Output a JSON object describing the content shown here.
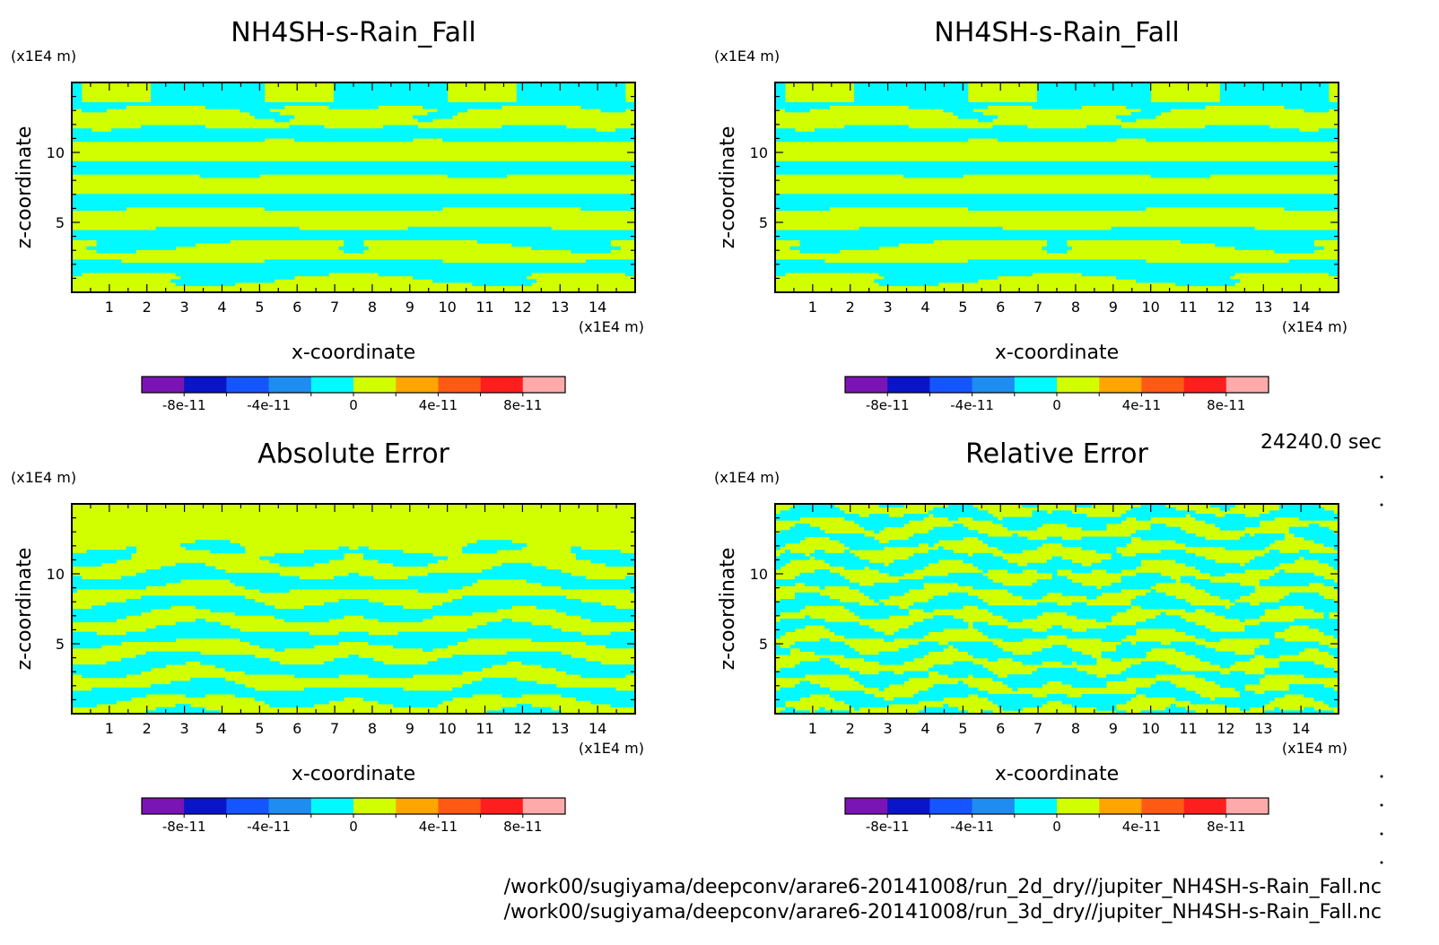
{
  "colors": {
    "bin_colors": [
      "#7b14b4",
      "#0a14c8",
      "#1455ff",
      "#1e8cf0",
      "#00faff",
      "#d2ff00",
      "#ffa500",
      "#ff5a14",
      "#ff1e1e",
      "#ffaaaa"
    ],
    "zero_pos": "#d2ff00",
    "zero_neg": "#00faff"
  },
  "chart_data": [
    {
      "type": "heatmap",
      "title": "NH4SH-s-Rain_Fall",
      "xlabel": "x-coordinate",
      "ylabel": "z-coordinate",
      "x_unit": "(x1E4 m)",
      "y_unit": "(x1E4 m)",
      "xlim": [
        0,
        15.0
      ],
      "ylim": [
        0,
        15.0
      ],
      "x_ticks": [
        "1",
        "2",
        "3",
        "4",
        "5",
        "6",
        "7",
        "8",
        "9",
        "10",
        "11",
        "12",
        "13",
        "14"
      ],
      "y_ticks": [
        "5",
        "10"
      ],
      "pattern": "field",
      "colorbar": {
        "min": -1e-10,
        "max": 1e-10,
        "step": 2e-11,
        "labels": [
          "-8e-11",
          "-4e-11",
          "0",
          "4e-11",
          "8e-11"
        ]
      }
    },
    {
      "type": "heatmap",
      "title": "NH4SH-s-Rain_Fall",
      "xlabel": "x-coordinate",
      "ylabel": "z-coordinate",
      "x_unit": "(x1E4 m)",
      "y_unit": "(x1E4 m)",
      "xlim": [
        0,
        15.0
      ],
      "ylim": [
        0,
        15.0
      ],
      "x_ticks": [
        "1",
        "2",
        "3",
        "4",
        "5",
        "6",
        "7",
        "8",
        "9",
        "10",
        "11",
        "12",
        "13",
        "14"
      ],
      "y_ticks": [
        "5",
        "10"
      ],
      "pattern": "field",
      "colorbar": {
        "min": -1e-10,
        "max": 1e-10,
        "step": 2e-11,
        "labels": [
          "-8e-11",
          "-4e-11",
          "0",
          "4e-11",
          "8e-11"
        ]
      }
    },
    {
      "type": "heatmap",
      "title": "Absolute Error",
      "xlabel": "x-coordinate",
      "ylabel": "z-coordinate",
      "x_unit": "(x1E4 m)",
      "y_unit": "(x1E4 m)",
      "xlim": [
        0,
        15.0
      ],
      "ylim": [
        0,
        15.0
      ],
      "x_ticks": [
        "1",
        "2",
        "3",
        "4",
        "5",
        "6",
        "7",
        "8",
        "9",
        "10",
        "11",
        "12",
        "13",
        "14"
      ],
      "y_ticks": [
        "5",
        "10"
      ],
      "pattern": "abserr",
      "colorbar": {
        "min": -1e-10,
        "max": 1e-10,
        "step": 2e-11,
        "labels": [
          "-8e-11",
          "-4e-11",
          "0",
          "4e-11",
          "8e-11"
        ]
      }
    },
    {
      "type": "heatmap",
      "title": "Relative Error",
      "xlabel": "x-coordinate",
      "ylabel": "z-coordinate",
      "x_unit": "(x1E4 m)",
      "y_unit": "(x1E4 m)",
      "xlim": [
        0,
        15.0
      ],
      "ylim": [
        0,
        15.0
      ],
      "x_ticks": [
        "1",
        "2",
        "3",
        "4",
        "5",
        "6",
        "7",
        "8",
        "9",
        "10",
        "11",
        "12",
        "13",
        "14"
      ],
      "y_ticks": [
        "5",
        "10"
      ],
      "pattern": "relerr",
      "colorbar": {
        "min": -1e-10,
        "max": 1e-10,
        "step": 2e-11,
        "labels": [
          "-8e-11",
          "-4e-11",
          "0",
          "4e-11",
          "8e-11"
        ]
      }
    }
  ],
  "time_label": "24240.0 sec",
  "footer": {
    "path_2d": "/work00/sugiyama/deepconv/arare6-20141008/run_2d_dry//jupiter_NH4SH-s-Rain_Fall.nc",
    "path_3d": "/work00/sugiyama/deepconv/arare6-20141008/run_3d_dry//jupiter_NH4SH-s-Rain_Fall.nc"
  }
}
